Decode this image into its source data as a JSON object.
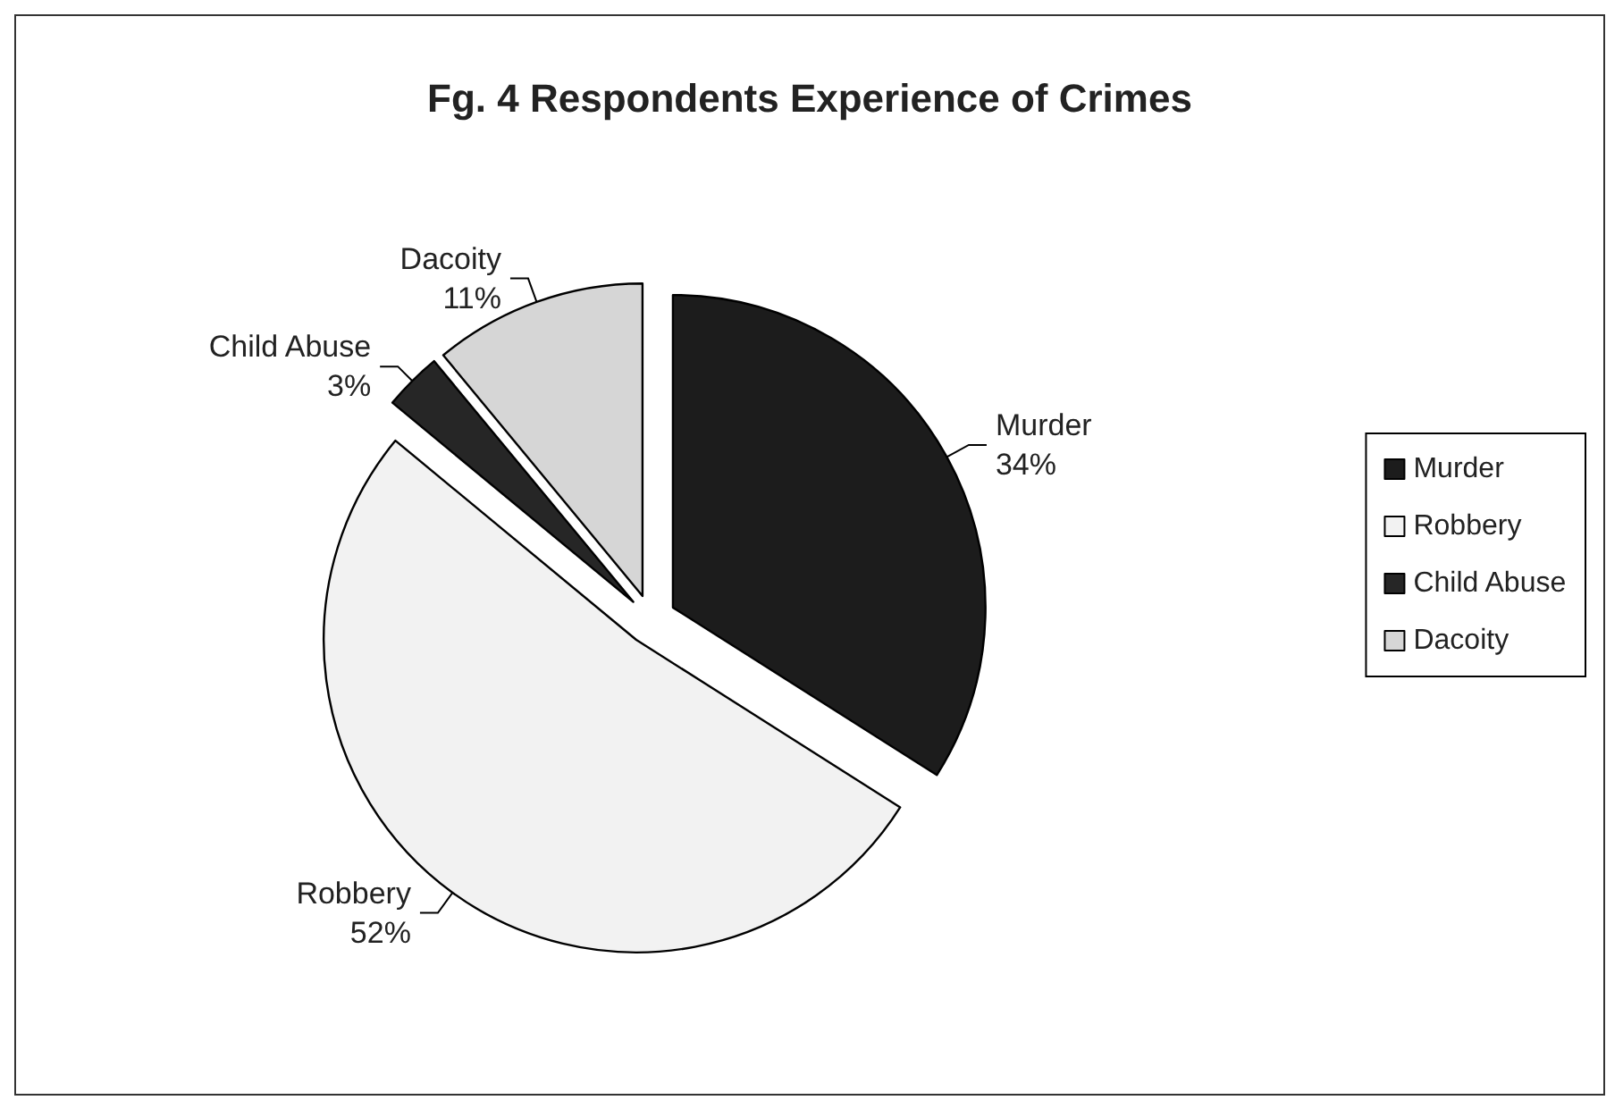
{
  "chart_data": {
    "type": "pie",
    "title": "Fg. 4 Respondents Experience of Crimes",
    "categories": [
      "Murder",
      "Robbery",
      "Child Abuse",
      "Dacoity"
    ],
    "values": [
      34,
      52,
      3,
      11
    ],
    "colors": [
      "#1c1c1c",
      "#f2f2f2",
      "#262626",
      "#d6d6d6"
    ],
    "value_labels": [
      "34%",
      "52%",
      "3%",
      "11%"
    ],
    "legend": "right"
  }
}
